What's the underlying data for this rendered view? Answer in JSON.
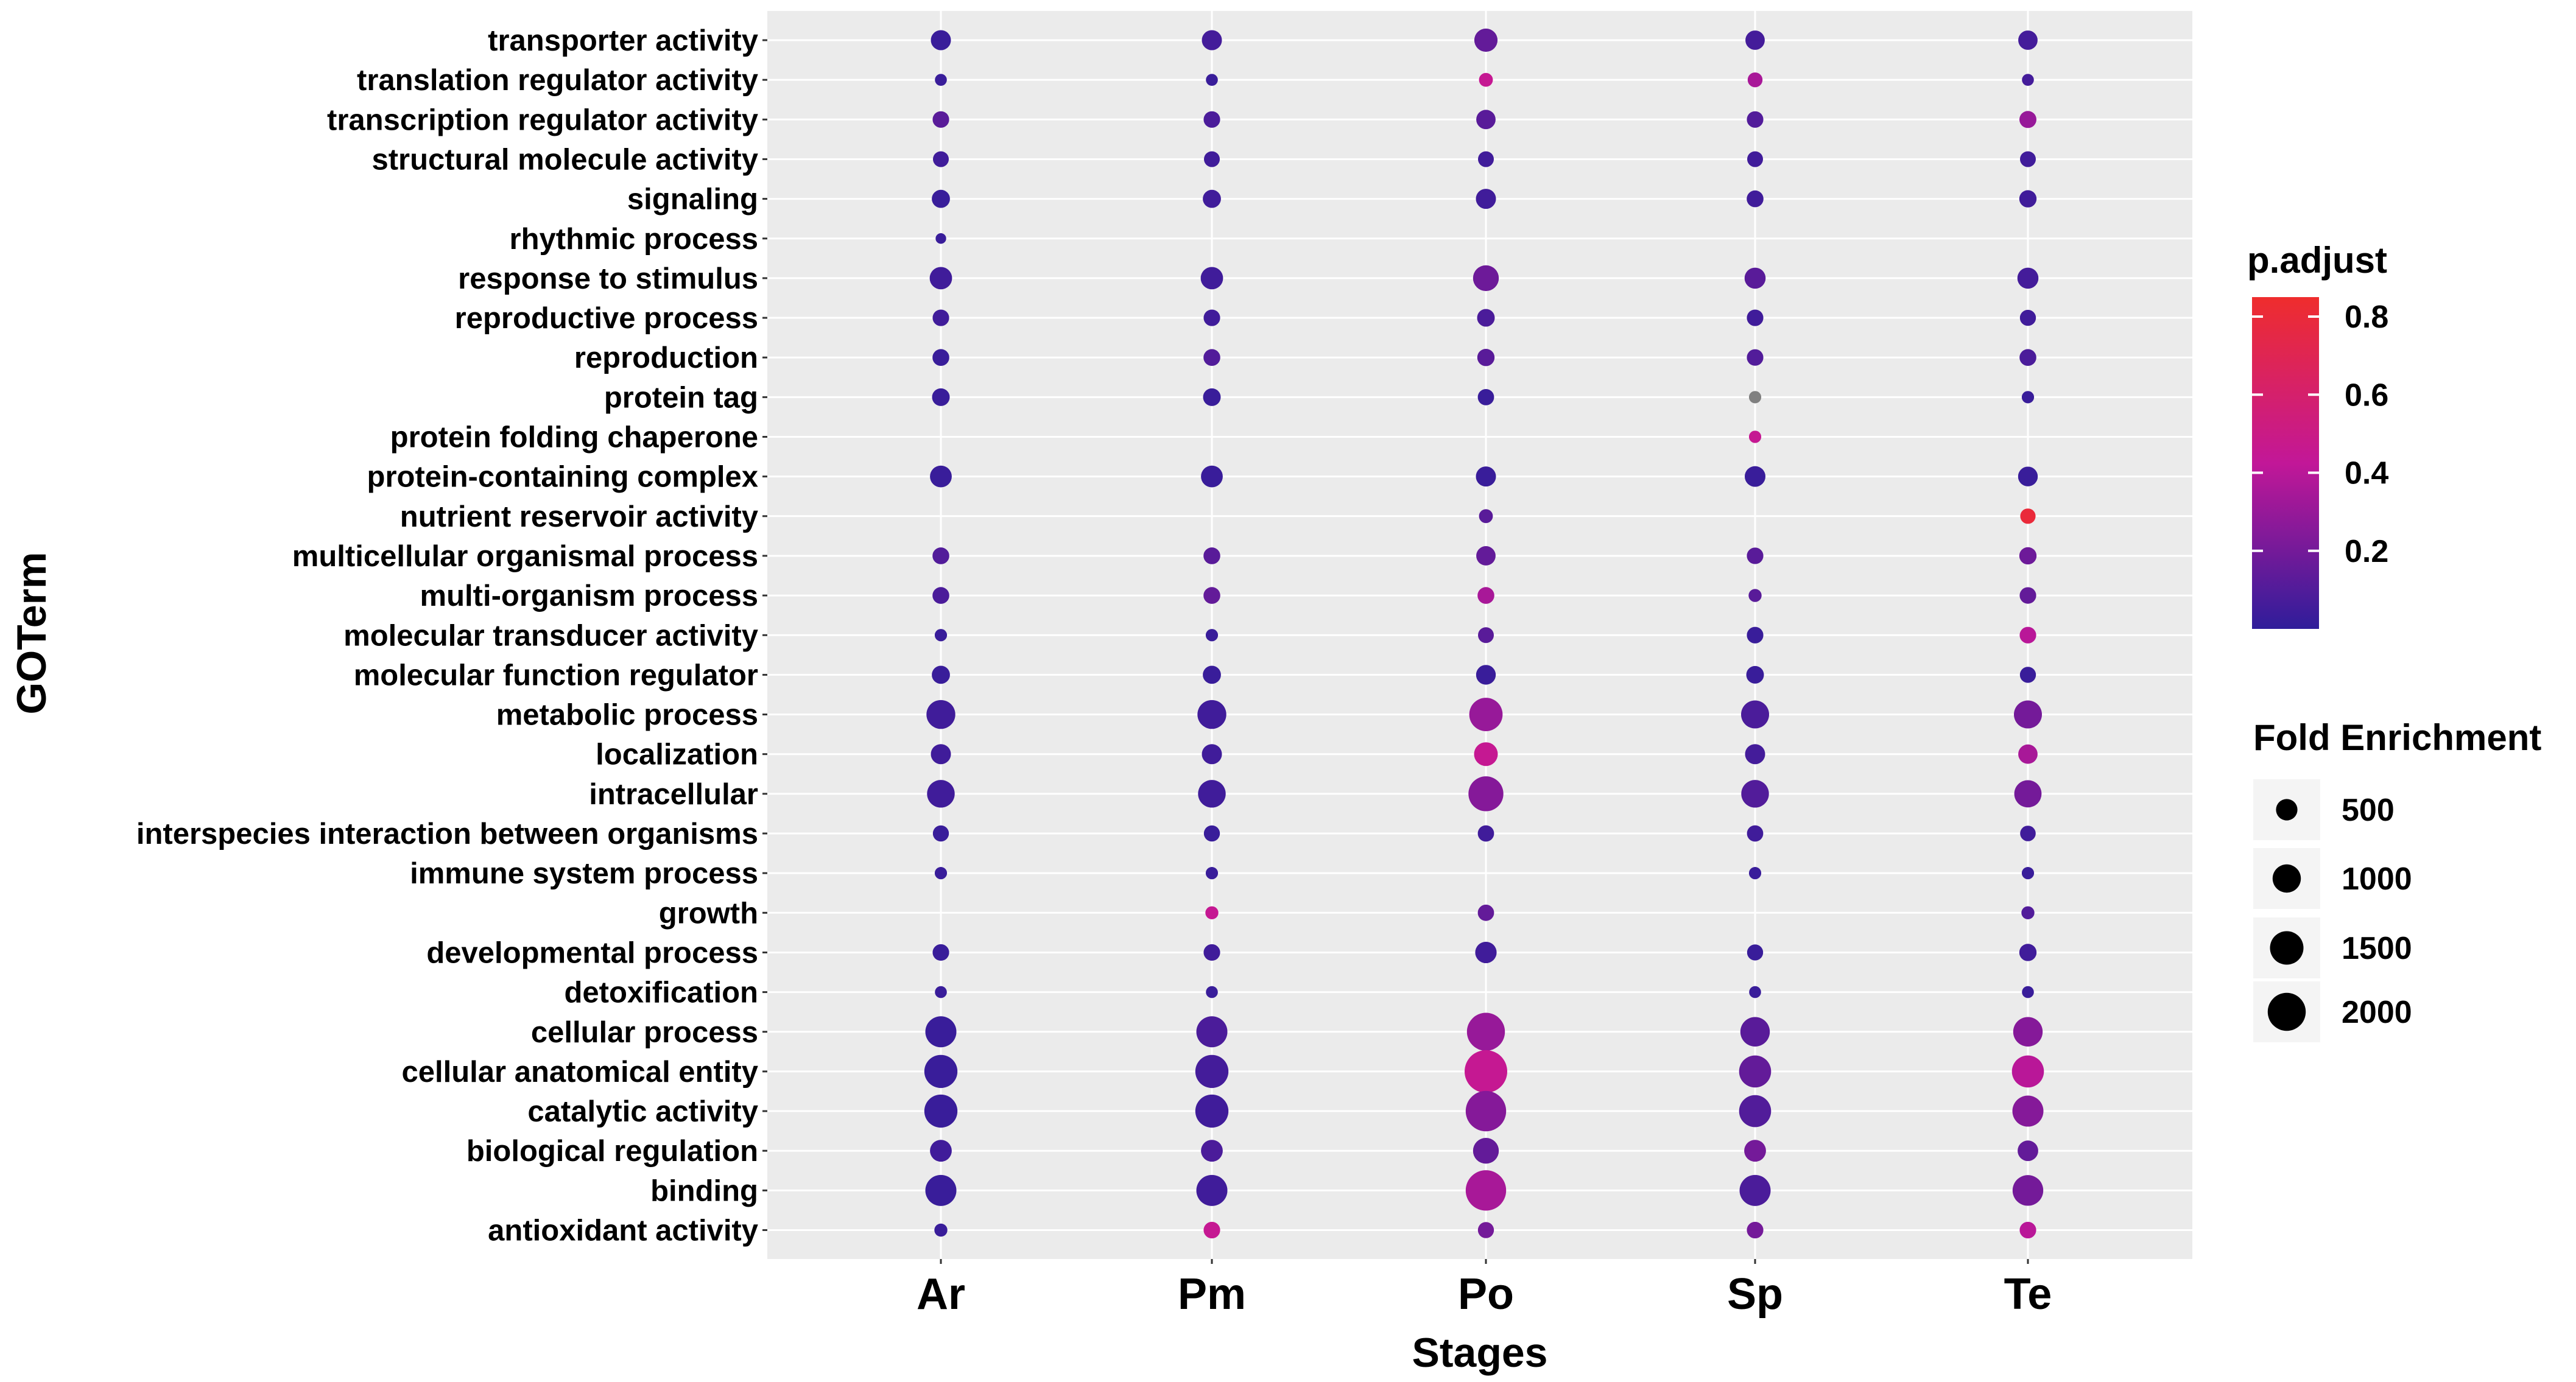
{
  "chart_data": {
    "type": "scatter",
    "subtype": "dot-plot",
    "xlabel": "Stages",
    "ylabel": "GOTerm",
    "grid": true,
    "categories_x": [
      "Ar",
      "Pm",
      "Po",
      "Sp",
      "Te"
    ],
    "categories_y": [
      "transporter activity",
      "translation regulator activity",
      "transcription regulator activity",
      "structural molecule activity",
      "signaling",
      "rhythmic process",
      "response to stimulus",
      "reproductive process",
      "reproduction",
      "protein tag",
      "protein folding chaperone",
      "protein-containing complex",
      "nutrient reservoir activity",
      "multicellular organismal process",
      "multi-organism process",
      "molecular transducer activity",
      "molecular function regulator",
      "metabolic process",
      "localization",
      "intracellular",
      "interspecies interaction between organisms",
      "immune system process",
      "growth",
      "developmental process",
      "detoxification",
      "cellular process",
      "cellular anatomical entity",
      "catalytic activity",
      "biological regulation",
      "binding",
      "antioxidant activity"
    ],
    "fold_enrichment": [
      [
        420,
        420,
        620,
        380,
        380
      ],
      [
        90,
        90,
        150,
        180,
        90
      ],
      [
        250,
        250,
        380,
        250,
        270
      ],
      [
        220,
        220,
        220,
        220,
        220
      ],
      [
        320,
        320,
        420,
        260,
        280
      ],
      [
        60,
        null,
        null,
        null,
        null
      ],
      [
        560,
        560,
        800,
        480,
        480
      ],
      [
        250,
        250,
        300,
        250,
        230
      ],
      [
        260,
        260,
        280,
        250,
        260
      ],
      [
        300,
        300,
        240,
        100,
        100
      ],
      [
        null,
        null,
        null,
        100,
        null
      ],
      [
        520,
        520,
        420,
        460,
        400
      ],
      [
        null,
        null,
        150,
        null,
        200
      ],
      [
        260,
        260,
        380,
        250,
        280
      ],
      [
        260,
        260,
        260,
        120,
        250
      ],
      [
        100,
        100,
        220,
        250,
        250
      ],
      [
        320,
        320,
        400,
        300,
        230
      ],
      [
        1050,
        1050,
        1480,
        980,
        980
      ],
      [
        420,
        420,
        650,
        420,
        380
      ],
      [
        950,
        950,
        1650,
        950,
        920
      ],
      [
        230,
        230,
        240,
        240,
        210
      ],
      [
        100,
        100,
        null,
        100,
        100
      ],
      [
        null,
        120,
        240,
        null,
        120
      ],
      [
        250,
        250,
        500,
        230,
        280
      ],
      [
        90,
        90,
        null,
        90,
        90
      ],
      [
        1250,
        1250,
        2000,
        1100,
        1100
      ],
      [
        1450,
        1450,
        2600,
        1350,
        1350
      ],
      [
        1450,
        1450,
        2300,
        1350,
        1250
      ],
      [
        520,
        520,
        800,
        520,
        450
      ],
      [
        1250,
        1250,
        2300,
        1250,
        1220
      ],
      [
        120,
        250,
        230,
        250,
        250
      ]
    ],
    "p_adjust": [
      [
        0.03,
        0.06,
        0.15,
        0.06,
        0.06
      ],
      [
        0.03,
        0.03,
        0.45,
        0.35,
        0.06
      ],
      [
        0.12,
        0.08,
        0.12,
        0.1,
        0.3
      ],
      [
        0.05,
        0.05,
        0.05,
        0.05,
        0.05
      ],
      [
        0.03,
        0.05,
        0.05,
        0.05,
        0.05
      ],
      [
        0.03,
        null,
        null,
        null,
        null
      ],
      [
        0.05,
        0.05,
        0.18,
        0.12,
        0.06
      ],
      [
        0.05,
        0.05,
        0.08,
        0.05,
        0.05
      ],
      [
        0.03,
        0.1,
        0.12,
        0.1,
        0.08
      ],
      [
        0.03,
        0.03,
        0.03,
        null,
        0.03
      ],
      [
        null,
        null,
        null,
        0.45,
        null
      ],
      [
        0.03,
        0.03,
        0.03,
        0.03,
        0.03
      ],
      [
        null,
        null,
        0.12,
        null,
        0.8
      ],
      [
        0.1,
        0.12,
        0.15,
        0.12,
        0.18
      ],
      [
        0.08,
        0.15,
        0.35,
        0.12,
        0.15
      ],
      [
        0.03,
        0.03,
        0.12,
        0.03,
        0.4
      ],
      [
        0.03,
        0.03,
        0.03,
        0.03,
        0.03
      ],
      [
        0.05,
        0.05,
        0.3,
        0.08,
        0.2
      ],
      [
        0.05,
        0.05,
        0.45,
        0.06,
        0.35
      ],
      [
        0.05,
        0.05,
        0.25,
        0.1,
        0.2
      ],
      [
        0.03,
        0.03,
        0.05,
        0.05,
        0.05
      ],
      [
        0.03,
        0.03,
        null,
        0.03,
        0.03
      ],
      [
        null,
        0.45,
        0.15,
        null,
        0.1
      ],
      [
        0.03,
        0.05,
        0.05,
        0.03,
        0.05
      ],
      [
        0.03,
        0.03,
        null,
        0.03,
        0.03
      ],
      [
        0.03,
        0.08,
        0.3,
        0.12,
        0.25
      ],
      [
        0.03,
        0.06,
        0.45,
        0.15,
        0.4
      ],
      [
        0.03,
        0.05,
        0.25,
        0.1,
        0.25
      ],
      [
        0.05,
        0.08,
        0.15,
        0.2,
        0.15
      ],
      [
        0.03,
        0.05,
        0.35,
        0.08,
        0.2
      ],
      [
        0.03,
        0.45,
        0.2,
        0.2,
        0.4
      ]
    ],
    "missing_p_adjust_color": "#808080",
    "colorbar": {
      "title": "p.adjust",
      "ticks": [
        0.8,
        0.6,
        0.4,
        0.2
      ],
      "range": [
        0.0,
        0.85
      ],
      "low_color": "#2f1d9a",
      "mid_color": "#c21798",
      "high_color": "#ef2d2d"
    },
    "size_legend": {
      "title": "Fold Enrichment",
      "values": [
        500,
        1000,
        1500,
        2000
      ]
    }
  }
}
